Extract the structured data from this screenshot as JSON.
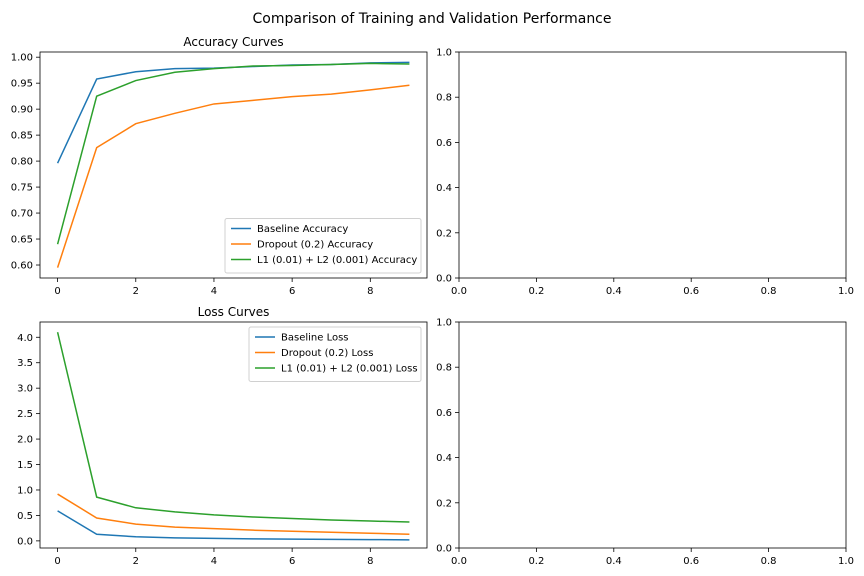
{
  "figure": {
    "suptitle": "Comparison of Training and Validation Performance"
  },
  "colors": {
    "blue": "#1f77b4",
    "orange": "#ff7f0e",
    "green": "#2ca02c"
  },
  "chart_data": [
    {
      "type": "line",
      "title": "Accuracy Curves",
      "xlabel": "",
      "ylabel": "",
      "x": [
        0,
        1,
        2,
        3,
        4,
        5,
        6,
        7,
        8,
        9
      ],
      "xlim": [
        -0.45,
        9.45
      ],
      "ylim": [
        0.575,
        1.01
      ],
      "xticks": [
        0,
        2,
        4,
        6,
        8
      ],
      "yticks": [
        0.6,
        0.65,
        0.7,
        0.75,
        0.8,
        0.85,
        0.9,
        0.95,
        1.0
      ],
      "ytick_format": 2,
      "legend_position": "lower right",
      "series": [
        {
          "name": "Baseline Accuracy",
          "color": "#1f77b4",
          "values": [
            0.796,
            0.958,
            0.972,
            0.978,
            0.979,
            0.982,
            0.985,
            0.986,
            0.989,
            0.99
          ]
        },
        {
          "name": "Dropout (0.2) Accuracy",
          "color": "#ff7f0e",
          "values": [
            0.595,
            0.826,
            0.872,
            0.892,
            0.91,
            0.917,
            0.924,
            0.929,
            0.937,
            0.946
          ]
        },
        {
          "name": "L1 (0.01) + L2 (0.001) Accuracy",
          "color": "#2ca02c",
          "values": [
            0.64,
            0.925,
            0.955,
            0.971,
            0.978,
            0.983,
            0.984,
            0.986,
            0.988,
            0.987
          ]
        }
      ]
    },
    {
      "type": "line",
      "title": "",
      "xlim": [
        0,
        1
      ],
      "ylim": [
        0,
        1
      ],
      "xticks": [
        0.0,
        0.2,
        0.4,
        0.6,
        0.8,
        1.0
      ],
      "yticks": [
        0.0,
        0.2,
        0.4,
        0.6,
        0.8,
        1.0
      ],
      "xtick_format": 1,
      "ytick_format": 1,
      "series": []
    },
    {
      "type": "line",
      "title": "Loss Curves",
      "xlabel": "",
      "ylabel": "",
      "x": [
        0,
        1,
        2,
        3,
        4,
        5,
        6,
        7,
        8,
        9
      ],
      "xlim": [
        -0.45,
        9.45
      ],
      "ylim": [
        -0.14,
        4.3
      ],
      "xticks": [
        0,
        2,
        4,
        6,
        8
      ],
      "yticks": [
        0.0,
        0.5,
        1.0,
        1.5,
        2.0,
        2.5,
        3.0,
        3.5,
        4.0
      ],
      "ytick_format": 1,
      "legend_position": "upper right",
      "series": [
        {
          "name": "Baseline Loss",
          "color": "#1f77b4",
          "values": [
            0.59,
            0.13,
            0.08,
            0.06,
            0.05,
            0.04,
            0.035,
            0.03,
            0.025,
            0.02
          ]
        },
        {
          "name": "Dropout (0.2) Loss",
          "color": "#ff7f0e",
          "values": [
            0.92,
            0.45,
            0.33,
            0.27,
            0.24,
            0.21,
            0.19,
            0.17,
            0.15,
            0.13
          ]
        },
        {
          "name": "L1 (0.01) + L2 (0.001) Loss",
          "color": "#2ca02c",
          "values": [
            4.1,
            0.86,
            0.65,
            0.57,
            0.51,
            0.47,
            0.44,
            0.41,
            0.39,
            0.37
          ]
        }
      ]
    },
    {
      "type": "line",
      "title": "",
      "xlim": [
        0,
        1
      ],
      "ylim": [
        0,
        1
      ],
      "xticks": [
        0.0,
        0.2,
        0.4,
        0.6,
        0.8,
        1.0
      ],
      "yticks": [
        0.0,
        0.2,
        0.4,
        0.6,
        0.8,
        1.0
      ],
      "xtick_format": 1,
      "ytick_format": 1,
      "series": []
    }
  ]
}
